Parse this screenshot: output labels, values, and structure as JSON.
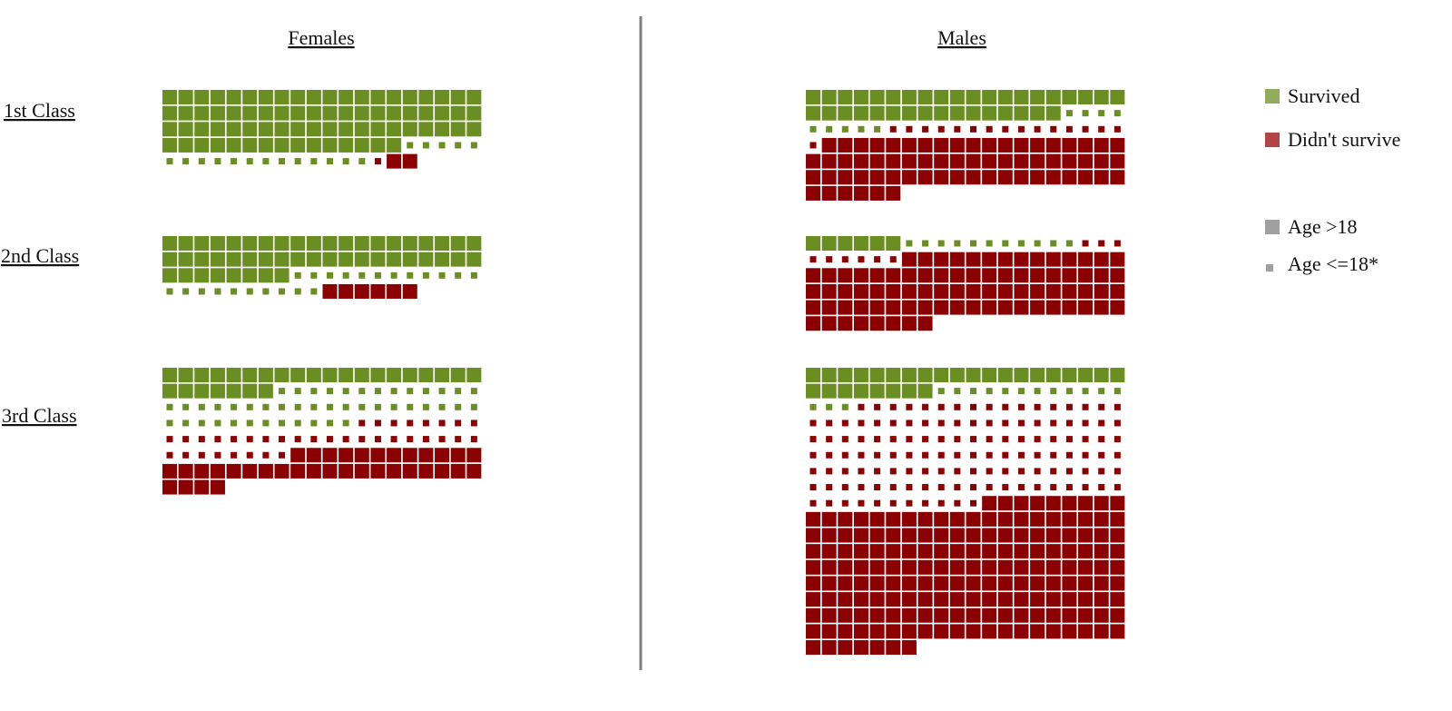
{
  "chart_data": {
    "type": "waffle",
    "unit": "1 square = 1 passenger",
    "headers": {
      "females": "Females",
      "males": "Males"
    },
    "class_labels": [
      "1st Class",
      "2nd Class",
      "3rd Class"
    ],
    "legend": {
      "survived": "Survived",
      "didnt_survive": "Didn't survive",
      "adult": "Age >18",
      "child": "Age <=18*"
    },
    "colors": {
      "survived": "#6b8e23",
      "didnt_survive": "#8b0000",
      "legend_survived": "#8fad5c",
      "legend_didnt_survive": "#b24444",
      "legend_age": "#a0a0a0",
      "divider": "#808080"
    },
    "squares_per_row": 20,
    "groups": [
      {
        "sex": "Females",
        "class": "1st Class",
        "survived_adult": 75,
        "survived_child": 18,
        "died_adult": 2,
        "died_child": 1
      },
      {
        "sex": "Males",
        "class": "1st Class",
        "survived_adult": 36,
        "survived_child": 9,
        "died_adult": 65,
        "died_child": 16
      },
      {
        "sex": "Females",
        "class": "2nd Class",
        "survived_adult": 48,
        "survived_child": 22,
        "died_adult": 6,
        "died_child": 0
      },
      {
        "sex": "Males",
        "class": "2nd Class",
        "survived_adult": 6,
        "survived_child": 11,
        "died_adult": 82,
        "died_child": 9
      },
      {
        "sex": "Females",
        "class": "3rd Class",
        "survived_adult": 27,
        "survived_child": 45,
        "died_adult": 36,
        "died_child": 36
      },
      {
        "sex": "Males",
        "class": "3rd Class",
        "survived_adult": 28,
        "survived_child": 15,
        "died_adult": 176,
        "died_child": 128
      }
    ]
  }
}
